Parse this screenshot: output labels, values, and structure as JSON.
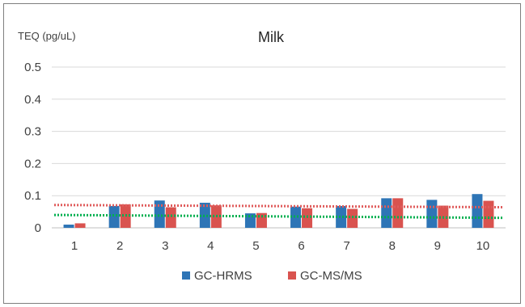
{
  "chart_data": {
    "type": "bar",
    "title": "Milk",
    "ylabel": "TEQ (pg/uL)",
    "xlabel": "",
    "categories": [
      "1",
      "2",
      "3",
      "4",
      "5",
      "6",
      "7",
      "8",
      "9",
      "10"
    ],
    "ylim": [
      0,
      0.5
    ],
    "yticks": [
      "0",
      "0.1",
      "0.2",
      "0.3",
      "0.4",
      "0.5"
    ],
    "grid": true,
    "legend_position": "bottom",
    "series": [
      {
        "name": "GC-HRMS",
        "color": "#2e75b6",
        "values": [
          0.01,
          0.068,
          0.085,
          0.078,
          0.045,
          0.066,
          0.068,
          0.092,
          0.087,
          0.105
        ],
        "trendline": {
          "style": "dotted",
          "color": "#00b050",
          "start": 0.04,
          "end": 0.031
        }
      },
      {
        "name": "GC-MS/MS",
        "color": "#d9534f",
        "values": [
          0.014,
          0.073,
          0.064,
          0.07,
          0.046,
          0.061,
          0.059,
          0.092,
          0.069,
          0.084
        ],
        "trendline": {
          "style": "dotted",
          "color": "#e05c5c",
          "start": 0.071,
          "end": 0.064
        }
      }
    ]
  }
}
